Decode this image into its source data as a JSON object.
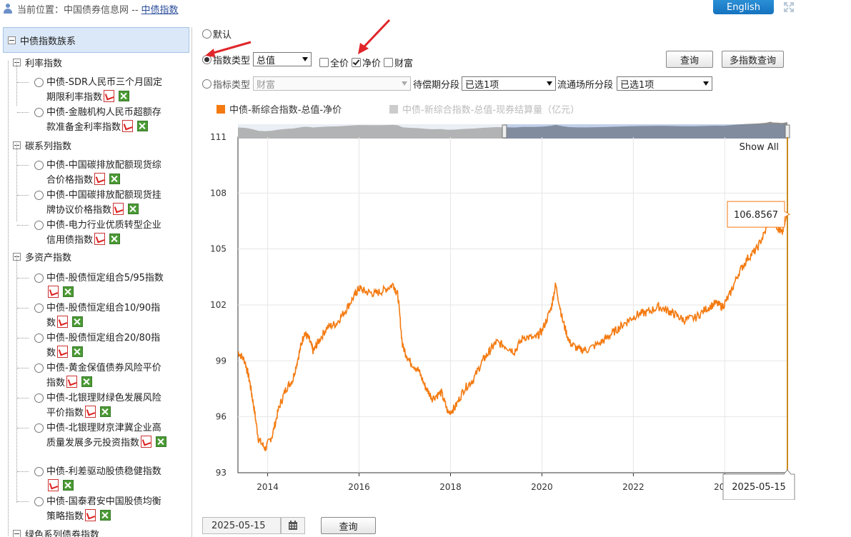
{
  "location": {
    "label": "当前位置：中国债券信息网 --",
    "link": "中债指数"
  },
  "language_button": "English",
  "sidebar": {
    "title": "中债指数族系",
    "categories": [
      {
        "label": "利率指数",
        "items": [
          {
            "label": "中债-SDR人民币三个月固定期限利率指数"
          },
          {
            "label": "中债-金融机构人民币超额存款准备金利率指数"
          }
        ]
      },
      {
        "label": "碳系列指数",
        "items": [
          {
            "label": "中债-中国碳排放配额现货综合价格指数"
          },
          {
            "label": "中债-中国碳排放配额现货挂牌协议价格指数"
          },
          {
            "label": "中债-电力行业优质转型企业信用债指数"
          }
        ]
      },
      {
        "label": "多资产指数",
        "items": [
          {
            "label": "中债-股债恒定组合5/95指数"
          },
          {
            "label": "中债-股债恒定组合10/90指数"
          },
          {
            "label": "中债-股债恒定组合20/80指数"
          },
          {
            "label": "中债-黄金保值债券风险平价指数"
          },
          {
            "label": "中债-北银理财绿色发展风险平价指数"
          },
          {
            "label": "中债-北银理财京津冀企业高质量发展多元投资指数"
          },
          {
            "label": "中债-利差驱动股债稳健指数"
          },
          {
            "label": "中债-国泰君安中国股债均衡策略指数"
          }
        ]
      },
      {
        "label": "绿色系列债券指数",
        "items": []
      }
    ]
  },
  "controls": {
    "default_label": "默认",
    "index_type_label": "指数类型",
    "index_type_value": "总值",
    "full_price": "全价",
    "net_price": "净价",
    "wealth": "财富",
    "query": "查询",
    "multi_query": "多指数查询",
    "indicator_type_label": "指标类型",
    "indicator_type_value": "财富",
    "maturity_label": "待偿期分段",
    "maturity_value": "已选1项",
    "venue_label": "流通场所分段",
    "venue_value": "已选1项"
  },
  "bottom": {
    "date": "2025-05-15",
    "query": "查询"
  },
  "colors": {
    "series": "#f47a10",
    "accent": "#1573bf",
    "navigator": "#707070"
  },
  "chart_data": {
    "type": "line",
    "series": [
      {
        "name": "中债-新综合指数-总值-净价",
        "color": "#f47a10",
        "active": true,
        "points": [
          [
            2013.35,
            99.5
          ],
          [
            2013.5,
            99.0
          ],
          [
            2013.6,
            98.0
          ],
          [
            2013.7,
            96.5
          ],
          [
            2013.8,
            94.8
          ],
          [
            2013.95,
            94.3
          ],
          [
            2014.1,
            95.0
          ],
          [
            2014.25,
            96.5
          ],
          [
            2014.4,
            97.5
          ],
          [
            2014.55,
            98.0
          ],
          [
            2014.7,
            99.5
          ],
          [
            2014.8,
            100.5
          ],
          [
            2014.9,
            100.2
          ],
          [
            2015.0,
            99.5
          ],
          [
            2015.1,
            100.0
          ],
          [
            2015.3,
            100.8
          ],
          [
            2015.5,
            101.0
          ],
          [
            2015.7,
            101.7
          ],
          [
            2015.9,
            102.5
          ],
          [
            2016.0,
            102.9
          ],
          [
            2016.15,
            102.7
          ],
          [
            2016.35,
            102.6
          ],
          [
            2016.55,
            102.8
          ],
          [
            2016.75,
            103.1
          ],
          [
            2016.85,
            102.5
          ],
          [
            2016.95,
            99.8
          ],
          [
            2017.1,
            99.0
          ],
          [
            2017.3,
            98.5
          ],
          [
            2017.45,
            97.6
          ],
          [
            2017.6,
            97.0
          ],
          [
            2017.8,
            97.3
          ],
          [
            2017.95,
            96.2
          ],
          [
            2018.1,
            96.5
          ],
          [
            2018.3,
            97.5
          ],
          [
            2018.5,
            98.0
          ],
          [
            2018.7,
            99.0
          ],
          [
            2018.85,
            99.5
          ],
          [
            2019.0,
            100.0
          ],
          [
            2019.2,
            99.8
          ],
          [
            2019.4,
            99.5
          ],
          [
            2019.6,
            100.3
          ],
          [
            2019.85,
            100.2
          ],
          [
            2020.0,
            100.6
          ],
          [
            2020.2,
            101.8
          ],
          [
            2020.3,
            103.1
          ],
          [
            2020.45,
            101.2
          ],
          [
            2020.6,
            100.0
          ],
          [
            2020.8,
            99.6
          ],
          [
            2021.0,
            99.6
          ],
          [
            2021.3,
            100.0
          ],
          [
            2021.5,
            100.4
          ],
          [
            2021.7,
            100.8
          ],
          [
            2021.9,
            101.2
          ],
          [
            2022.1,
            101.5
          ],
          [
            2022.3,
            101.6
          ],
          [
            2022.55,
            101.9
          ],
          [
            2022.75,
            101.7
          ],
          [
            2022.9,
            101.5
          ],
          [
            2023.1,
            101.2
          ],
          [
            2023.35,
            101.3
          ],
          [
            2023.6,
            101.8
          ],
          [
            2023.8,
            102.1
          ],
          [
            2023.95,
            101.9
          ],
          [
            2024.1,
            102.5
          ],
          [
            2024.3,
            103.7
          ],
          [
            2024.5,
            104.5
          ],
          [
            2024.7,
            105.0
          ],
          [
            2024.9,
            106.0
          ],
          [
            2025.0,
            107.5
          ],
          [
            2025.05,
            106.5
          ],
          [
            2025.15,
            106.2
          ],
          [
            2025.25,
            105.8
          ],
          [
            2025.37,
            106.86
          ]
        ]
      },
      {
        "name": "中债-新综合指数-总值-现券结算量（亿元）",
        "color": "#cccccc",
        "active": false,
        "points": []
      }
    ],
    "x_ticks": [
      "2014",
      "2016",
      "2018",
      "2020",
      "2022",
      "2024"
    ],
    "y_ticks": [
      "93",
      "96",
      "99",
      "102",
      "105",
      "108",
      "111"
    ],
    "ylim": [
      93,
      111
    ],
    "xlim": [
      2013.35,
      2025.37
    ],
    "show_all": "Show All",
    "tooltip_value": "106.8567",
    "tooltip_date": "2025-05-15"
  }
}
